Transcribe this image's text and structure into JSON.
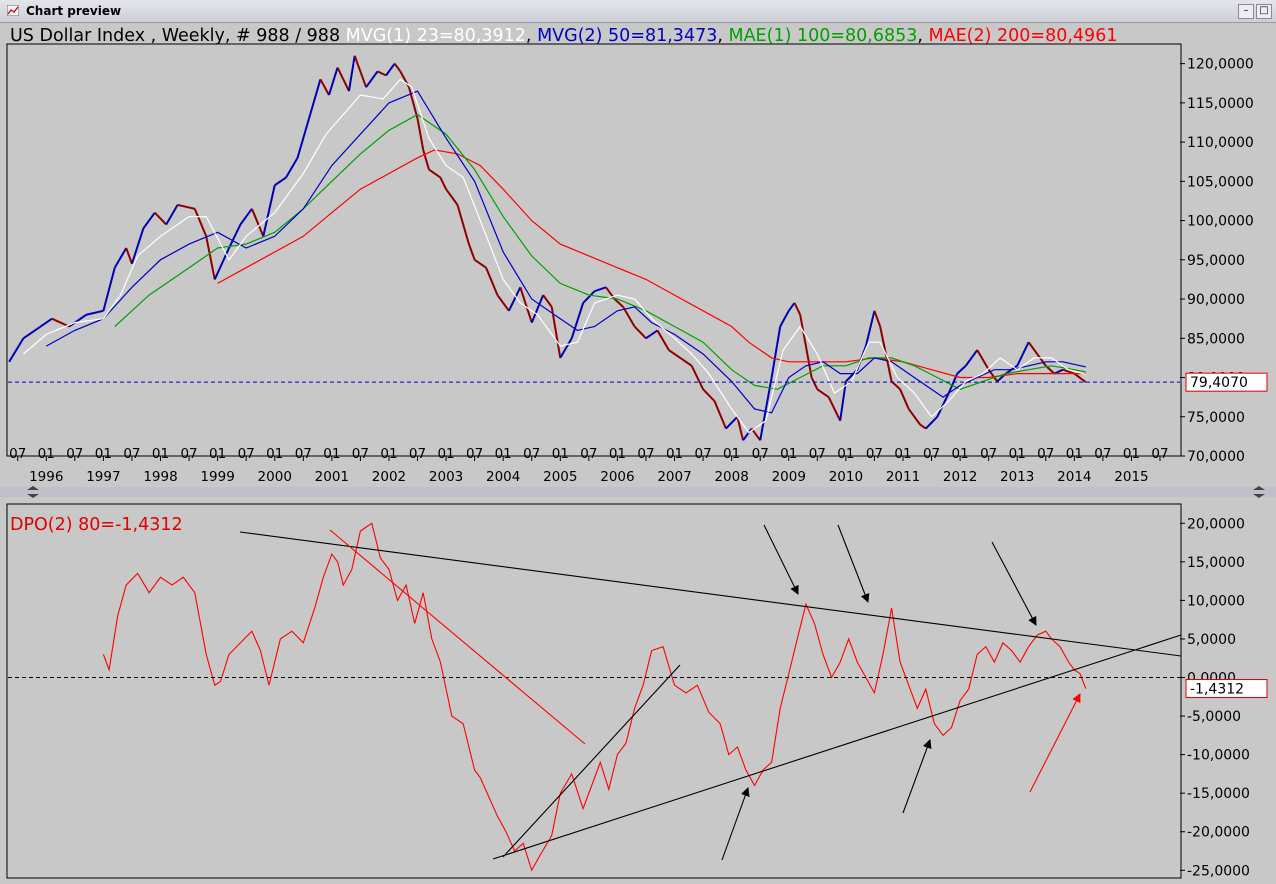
{
  "window": {
    "title": "Chart preview",
    "minimize_symbol": "–",
    "maximize_symbol": "□"
  },
  "colors": {
    "background": "#c8c8c8",
    "mvg1": "#ffffff",
    "mvg2": "#0000c8",
    "mae1": "#00a000",
    "mae2": "#ff0000",
    "dpo": "#ff0000",
    "price_up": "#0000b4",
    "price_down": "#8c0000",
    "trendlines": "#000000"
  },
  "chart_data": [
    {
      "type": "line",
      "title_parts": [
        {
          "text": "US Dollar Index , Weekly, # 988 / 988 ",
          "color": "#000000"
        },
        {
          "text": "MVG(1) 23=80,3912",
          "color": "#ffffff"
        },
        {
          "text": ", ",
          "color": "#000000"
        },
        {
          "text": "MVG(2) 50=81,3473",
          "color": "#0000c8"
        },
        {
          "text": ", ",
          "color": "#000000"
        },
        {
          "text": "MAE(1) 100=80,6853",
          "color": "#00a000"
        },
        {
          "text": ", ",
          "color": "#000000"
        },
        {
          "text": "MAE(2) 200=80,4961",
          "color": "#ff0000"
        }
      ],
      "x_months": [
        "07",
        "01",
        "07",
        "01",
        "07",
        "01",
        "07",
        "01",
        "07",
        "01",
        "07",
        "01",
        "07",
        "01",
        "07",
        "01",
        "07",
        "01",
        "07",
        "01",
        "07",
        "01",
        "07",
        "01",
        "07",
        "01",
        "07",
        "01",
        "07",
        "01",
        "07",
        "01",
        "07",
        "01",
        "07",
        "01",
        "07",
        "01",
        "07",
        "01",
        "07"
      ],
      "x_years": [
        "1996",
        "1997",
        "1998",
        "1999",
        "2000",
        "2001",
        "2002",
        "2003",
        "2004",
        "2005",
        "2006",
        "2007",
        "2008",
        "2009",
        "2010",
        "2011",
        "2012",
        "2013",
        "2014",
        "2015"
      ],
      "x_range": [
        1995.33,
        2015.85
      ],
      "ylim": [
        70,
        122.5
      ],
      "yticks": [
        "120,0000",
        "115,0000",
        "110,0000",
        "105,0000",
        "100,0000",
        "95,0000",
        "90,0000",
        "85,0000",
        "80,0000",
        "75,0000",
        "70,0000"
      ],
      "ytick_values": [
        120,
        115,
        110,
        105,
        100,
        95,
        90,
        85,
        80,
        75,
        70
      ],
      "last_value": 79.407,
      "last_value_label": "79,4070",
      "series": [
        {
          "name": "MVG(1) 23",
          "role": "mvg1",
          "x": [
            1995.6,
            1996.0,
            1996.5,
            1997.0,
            1997.3,
            1997.6,
            1998.0,
            1998.5,
            1998.8,
            1999.2,
            1999.5,
            2000.0,
            2000.5,
            2000.9,
            2001.2,
            2001.5,
            2001.9,
            2002.2,
            2002.4,
            2002.7,
            2003.0,
            2003.3,
            2003.6,
            2004.0,
            2004.3,
            2004.6,
            2005.0,
            2005.3,
            2005.6,
            2006.0,
            2006.3,
            2006.6,
            2007.0,
            2007.3,
            2007.6,
            2008.0,
            2008.3,
            2008.6,
            2008.9,
            2009.2,
            2009.5,
            2009.8,
            2010.1,
            2010.4,
            2010.6,
            2010.9,
            2011.2,
            2011.5,
            2011.8,
            2012.1,
            2012.4,
            2012.7,
            2013.0,
            2013.3,
            2013.6,
            2013.9,
            2014.2
          ],
          "values": [
            83.0,
            85.5,
            87.0,
            87.5,
            90.5,
            95.5,
            98.0,
            100.5,
            100.5,
            95.0,
            98.0,
            101.0,
            106.0,
            111.0,
            113.5,
            116.0,
            115.5,
            118.0,
            117.0,
            110.5,
            107.0,
            105.5,
            100.0,
            92.5,
            89.5,
            88.0,
            84.0,
            84.5,
            89.5,
            90.5,
            90.0,
            87.5,
            85.0,
            83.0,
            80.5,
            76.0,
            73.0,
            74.5,
            83.5,
            86.5,
            83.0,
            78.0,
            79.5,
            84.5,
            84.5,
            80.0,
            78.0,
            75.0,
            77.0,
            79.5,
            80.5,
            82.5,
            81.0,
            82.5,
            82.5,
            81.0,
            80.4
          ]
        },
        {
          "name": "MVG(2) 50",
          "role": "mvg2",
          "x": [
            1996.0,
            1996.5,
            1997.0,
            1997.5,
            1998.0,
            1998.5,
            1999.0,
            1999.5,
            2000.0,
            2000.5,
            2001.0,
            2001.5,
            2002.0,
            2002.5,
            2003.0,
            2003.5,
            2004.0,
            2004.5,
            2005.0,
            2005.3,
            2005.6,
            2006.0,
            2006.3,
            2006.6,
            2007.0,
            2007.5,
            2008.0,
            2008.4,
            2008.7,
            2009.0,
            2009.3,
            2009.6,
            2009.9,
            2010.2,
            2010.5,
            2010.8,
            2011.1,
            2011.4,
            2011.7,
            2012.0,
            2012.3,
            2012.6,
            2012.9,
            2013.2,
            2013.5,
            2013.8,
            2014.2
          ],
          "values": [
            84.0,
            86.0,
            87.5,
            91.5,
            95.0,
            97.0,
            98.5,
            96.5,
            98.0,
            101.5,
            107.0,
            111.0,
            115.0,
            116.5,
            110.5,
            105.0,
            96.0,
            90.0,
            87.5,
            86.0,
            86.5,
            88.5,
            89.0,
            87.0,
            85.5,
            83.0,
            79.5,
            76.0,
            75.5,
            80.0,
            81.5,
            82.0,
            80.5,
            80.5,
            82.5,
            82.0,
            80.5,
            79.0,
            77.5,
            79.0,
            80.0,
            81.0,
            81.0,
            81.5,
            82.0,
            82.0,
            81.35
          ]
        },
        {
          "name": "MAE(1) 100",
          "role": "mae1",
          "x": [
            1997.2,
            1997.8,
            1998.5,
            1999.0,
            1999.5,
            2000.0,
            2000.5,
            2001.0,
            2001.5,
            2002.0,
            2002.5,
            2003.0,
            2003.5,
            2004.0,
            2004.5,
            2005.0,
            2005.5,
            2006.0,
            2006.5,
            2007.0,
            2007.5,
            2008.0,
            2008.4,
            2008.8,
            2009.2,
            2009.6,
            2010.0,
            2010.4,
            2010.8,
            2011.2,
            2011.6,
            2012.0,
            2012.4,
            2012.8,
            2013.2,
            2013.6,
            2014.0,
            2014.2
          ],
          "values": [
            86.5,
            90.5,
            94.0,
            96.5,
            97.0,
            98.5,
            101.5,
            105.0,
            108.5,
            111.5,
            113.5,
            111.0,
            106.5,
            100.5,
            95.5,
            92.0,
            90.5,
            90.0,
            88.5,
            86.5,
            84.5,
            81.0,
            79.0,
            78.5,
            80.0,
            81.5,
            81.5,
            82.5,
            82.5,
            81.5,
            80.0,
            78.5,
            79.5,
            80.5,
            81.0,
            81.5,
            81.0,
            80.7
          ]
        },
        {
          "name": "MAE(2) 200",
          "role": "mae2",
          "x": [
            1999.0,
            1999.5,
            2000.0,
            2000.5,
            2001.0,
            2001.5,
            2002.0,
            2002.5,
            2002.8,
            2003.2,
            2003.6,
            2004.0,
            2004.5,
            2005.0,
            2005.5,
            2006.0,
            2006.5,
            2007.0,
            2007.5,
            2008.0,
            2008.3,
            2008.7,
            2009.0,
            2009.5,
            2010.0,
            2010.5,
            2011.0,
            2011.5,
            2012.0,
            2012.5,
            2013.0,
            2013.5,
            2014.0,
            2014.2
          ],
          "values": [
            92.0,
            94.0,
            96.0,
            98.0,
            101.0,
            104.0,
            106.0,
            108.0,
            109.0,
            108.5,
            107.0,
            104.0,
            100.0,
            97.0,
            95.5,
            94.0,
            92.5,
            90.5,
            88.5,
            86.5,
            84.5,
            82.5,
            82.0,
            82.0,
            82.0,
            82.5,
            82.0,
            81.0,
            80.0,
            80.0,
            80.5,
            80.5,
            80.5,
            80.5
          ]
        },
        {
          "name": "US Dollar Index",
          "role": "price",
          "x": [
            1995.35,
            1995.6,
            1995.9,
            1996.1,
            1996.4,
            1996.7,
            1997.0,
            1997.2,
            1997.4,
            1997.5,
            1997.7,
            1997.9,
            1998.1,
            1998.3,
            1998.6,
            1998.8,
            1998.95,
            1999.2,
            1999.4,
            1999.6,
            1999.8,
            2000.0,
            2000.2,
            2000.4,
            2000.6,
            2000.8,
            2000.95,
            2001.1,
            2001.3,
            2001.4,
            2001.6,
            2001.8,
            2001.95,
            2002.1,
            2002.2,
            2002.35,
            2002.5,
            2002.6,
            2002.7,
            2002.9,
            2003.0,
            2003.2,
            2003.4,
            2003.5,
            2003.7,
            2003.9,
            2004.1,
            2004.3,
            2004.5,
            2004.7,
            2004.85,
            2005.0,
            2005.2,
            2005.4,
            2005.6,
            2005.8,
            2005.95,
            2006.1,
            2006.3,
            2006.5,
            2006.7,
            2006.9,
            2007.1,
            2007.3,
            2007.5,
            2007.7,
            2007.9,
            2008.1,
            2008.2,
            2008.35,
            2008.5,
            2008.7,
            2008.85,
            2009.0,
            2009.1,
            2009.2,
            2009.4,
            2009.5,
            2009.7,
            2009.9,
            2010.0,
            2010.2,
            2010.35,
            2010.5,
            2010.6,
            2010.8,
            2010.95,
            2011.1,
            2011.3,
            2011.4,
            2011.6,
            2011.8,
            2011.95,
            2012.1,
            2012.3,
            2012.5,
            2012.65,
            2012.8,
            2013.0,
            2013.2,
            2013.35,
            2013.5,
            2013.65,
            2013.8,
            2014.0,
            2014.2
          ],
          "values": [
            82.0,
            85.0,
            86.5,
            87.5,
            86.5,
            88.0,
            88.5,
            94.0,
            96.5,
            94.5,
            99.0,
            101.0,
            99.5,
            102.0,
            101.5,
            98.0,
            92.5,
            96.5,
            99.5,
            101.5,
            98.0,
            104.5,
            105.5,
            108.0,
            113.0,
            118.0,
            116.0,
            119.5,
            116.5,
            121.0,
            117.0,
            119.0,
            118.5,
            120.0,
            119.0,
            117.0,
            113.0,
            109.0,
            106.5,
            105.5,
            104.0,
            102.0,
            97.0,
            95.0,
            94.0,
            90.5,
            88.5,
            91.5,
            87.0,
            90.5,
            89.0,
            82.5,
            85.0,
            89.5,
            91.0,
            91.5,
            90.0,
            89.0,
            86.5,
            85.0,
            86.0,
            83.5,
            82.5,
            81.5,
            78.5,
            77.0,
            73.5,
            75.0,
            72.0,
            73.5,
            72.0,
            80.0,
            86.5,
            88.5,
            89.5,
            88.0,
            80.0,
            78.5,
            77.5,
            74.5,
            79.5,
            81.0,
            84.0,
            88.5,
            86.5,
            79.5,
            78.5,
            76.0,
            74.0,
            73.5,
            75.0,
            78.0,
            80.5,
            81.5,
            83.5,
            81.0,
            79.5,
            80.5,
            81.5,
            84.5,
            83.0,
            81.5,
            80.5,
            81.0,
            80.5,
            79.4
          ]
        }
      ]
    },
    {
      "type": "line",
      "title": "DPO(2) 80=-1,4312",
      "ylim": [
        -26,
        22.5
      ],
      "yticks": [
        "20,0000",
        "15,0000",
        "10,0000",
        "5,0000",
        "0,0000",
        "-5,0000",
        "-10,0000",
        "-15,0000",
        "-20,0000",
        "-25,0000"
      ],
      "ytick_values": [
        20,
        15,
        10,
        5,
        0,
        -5,
        -10,
        -15,
        -20,
        -25
      ],
      "last_value": -1.4312,
      "last_value_label": "-1,4312",
      "series": [
        {
          "name": "DPO(2) 80",
          "role": "dpo",
          "x": [
            1997.0,
            1997.1,
            1997.25,
            1997.4,
            1997.6,
            1997.8,
            1998.0,
            1998.2,
            1998.4,
            1998.6,
            1998.8,
            1998.95,
            1999.05,
            1999.2,
            1999.4,
            1999.6,
            1999.75,
            1999.9,
            2000.1,
            2000.3,
            2000.5,
            2000.7,
            2000.85,
            2001.0,
            2001.1,
            2001.2,
            2001.35,
            2001.5,
            2001.7,
            2001.85,
            2002.0,
            2002.15,
            2002.3,
            2002.45,
            2002.6,
            2002.75,
            2002.9,
            2003.1,
            2003.3,
            2003.5,
            2003.6,
            2003.75,
            2003.9,
            2004.05,
            2004.2,
            2004.35,
            2004.5,
            2004.65,
            2004.85,
            2005.0,
            2005.2,
            2005.4,
            2005.55,
            2005.7,
            2005.85,
            2006.0,
            2006.15,
            2006.3,
            2006.45,
            2006.6,
            2006.8,
            2007.0,
            2007.2,
            2007.4,
            2007.6,
            2007.8,
            2007.95,
            2008.1,
            2008.25,
            2008.4,
            2008.55,
            2008.7,
            2008.85,
            2009.0,
            2009.15,
            2009.3,
            2009.45,
            2009.6,
            2009.75,
            2009.9,
            2010.05,
            2010.2,
            2010.35,
            2010.5,
            2010.65,
            2010.8,
            2010.95,
            2011.1,
            2011.25,
            2011.4,
            2011.55,
            2011.7,
            2011.85,
            2012.0,
            2012.15,
            2012.3,
            2012.45,
            2012.6,
            2012.75,
            2012.9,
            2013.05,
            2013.2,
            2013.35,
            2013.5,
            2013.6,
            2013.75,
            2013.9,
            2014.0,
            2014.1,
            2014.2
          ],
          "values": [
            3.0,
            1.0,
            8.0,
            12.0,
            13.5,
            11.0,
            13.0,
            12.0,
            13.0,
            11.0,
            3.0,
            -1.0,
            -0.5,
            3.0,
            4.5,
            6.0,
            3.5,
            -1.0,
            5.0,
            6.0,
            4.5,
            9.0,
            13.0,
            16.0,
            15.0,
            12.0,
            14.0,
            19.0,
            20.0,
            15.5,
            14.0,
            10.0,
            12.0,
            7.0,
            11.0,
            5.0,
            2.0,
            -5.0,
            -6.0,
            -12.0,
            -13.0,
            -15.5,
            -18.0,
            -20.0,
            -22.5,
            -21.5,
            -25.0,
            -23.0,
            -20.5,
            -15.0,
            -12.5,
            -17.0,
            -14.0,
            -11.0,
            -14.5,
            -10.0,
            -8.5,
            -4.0,
            -1.0,
            3.5,
            4.0,
            -1.0,
            -2.0,
            -1.0,
            -4.5,
            -6.0,
            -10.0,
            -9.0,
            -12.0,
            -14.0,
            -12.0,
            -11.0,
            -4.0,
            0.5,
            5.0,
            9.5,
            7.0,
            3.0,
            0.0,
            2.0,
            5.0,
            2.0,
            0.0,
            -2.0,
            3.0,
            9.0,
            2.0,
            -1.0,
            -4.0,
            -1.5,
            -6.0,
            -7.5,
            -6.5,
            -3.0,
            -1.5,
            3.0,
            4.0,
            2.0,
            4.5,
            3.5,
            2.0,
            4.0,
            5.5,
            6.0,
            5.0,
            4.0,
            2.0,
            1.0,
            0.5,
            -1.43
          ]
        }
      ]
    }
  ]
}
